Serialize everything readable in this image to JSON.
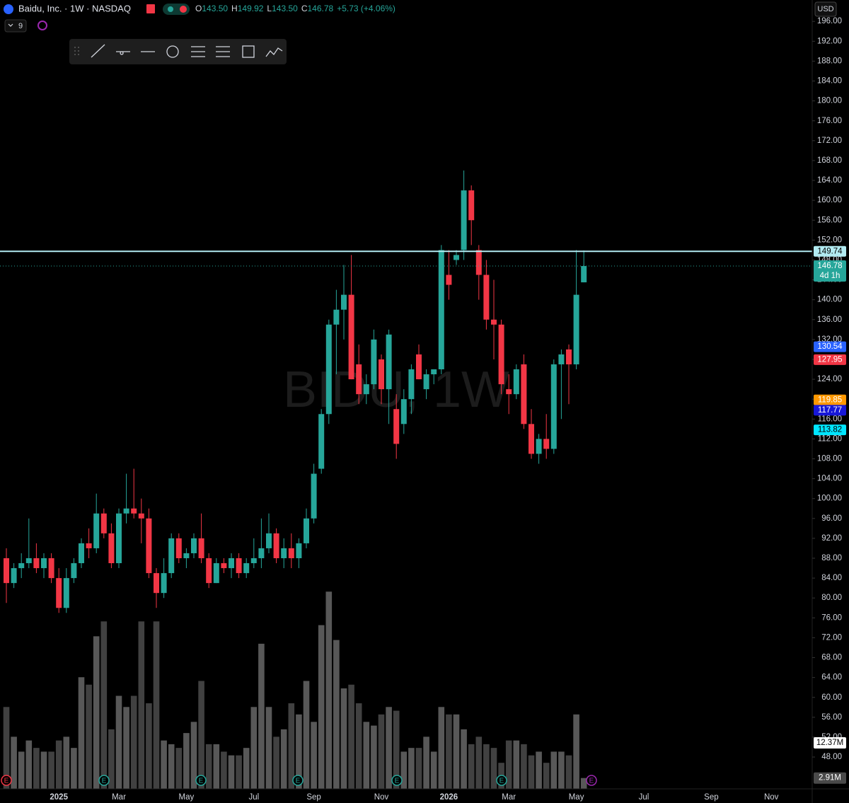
{
  "chart_data": {
    "type": "candlestick",
    "title": "Baidu, Inc. · 1W · NASDAQ",
    "watermark": "BIDU, 1W",
    "currency": "USD",
    "indicator_count": "9",
    "ohlc_header": [
      {
        "key": "O",
        "value": "143.50"
      },
      {
        "key": "H",
        "value": "149.92"
      },
      {
        "key": "L",
        "value": "143.50"
      },
      {
        "key": "C",
        "value": "146.78"
      }
    ],
    "change": "+5.73 (+4.06%)",
    "earnings_label": "E",
    "up_color": "#26a69a",
    "down_color": "#f23645",
    "categories": [
      null,
      null,
      null,
      null,
      null,
      null,
      null,
      "2025",
      null,
      null,
      null,
      null,
      null,
      null,
      null,
      "Mar",
      null,
      null,
      null,
      null,
      null,
      null,
      null,
      null,
      "May",
      null,
      null,
      null,
      null,
      null,
      null,
      null,
      null,
      "Jul",
      null,
      null,
      null,
      null,
      null,
      null,
      null,
      "Sep",
      null,
      null,
      null,
      null,
      null,
      null,
      null,
      null,
      "Nov",
      null,
      null,
      null,
      null,
      null,
      null,
      null,
      null,
      "2026",
      null,
      null,
      null,
      null,
      null,
      null,
      null,
      "Mar",
      null,
      null,
      null,
      null,
      null,
      null,
      null,
      null,
      "May",
      null,
      null,
      null,
      null,
      null,
      null,
      null,
      null,
      "Jul",
      null,
      null,
      null,
      null,
      null,
      null,
      null,
      null,
      "Sep",
      null,
      null,
      null,
      null,
      null,
      null,
      null,
      "Nov",
      null,
      null,
      null,
      null,
      null
    ],
    "open": [
      88,
      83,
      86,
      87,
      88,
      86,
      88,
      84,
      78,
      84,
      87,
      91,
      90,
      97,
      93,
      87,
      97,
      98,
      97,
      96,
      85,
      81,
      85,
      92,
      88,
      89,
      92,
      88,
      83,
      87,
      86,
      88,
      85,
      87,
      88,
      90,
      93,
      88,
      90,
      88,
      91,
      96,
      106,
      117,
      135,
      138,
      141,
      127,
      121,
      123,
      128,
      122,
      118,
      115,
      120,
      129,
      122,
      125,
      126,
      145,
      148,
      150,
      162,
      150,
      145,
      136,
      135,
      122,
      121,
      127,
      115,
      109,
      112,
      110,
      127,
      130,
      127,
      143.5,
      null,
      null,
      null,
      null,
      null,
      null,
      null,
      null,
      null,
      null,
      null,
      null,
      null,
      null,
      null,
      null,
      null,
      null,
      null,
      null,
      null,
      null,
      null,
      null,
      null,
      null,
      null,
      null,
      null,
      null
    ],
    "high": [
      90,
      87,
      89,
      96,
      91,
      89,
      89,
      86,
      86,
      88,
      92,
      94,
      101,
      98,
      95,
      98,
      105,
      106,
      100,
      98,
      86,
      88,
      93,
      93,
      90,
      93,
      97,
      89,
      88,
      88,
      89,
      89,
      88,
      92,
      96,
      97,
      94,
      92,
      93,
      92,
      98,
      107,
      118,
      136,
      142,
      147,
      149,
      131,
      125,
      134,
      129,
      134,
      121,
      122,
      127,
      131,
      126,
      126,
      151,
      150,
      150,
      166,
      163,
      151,
      148,
      144,
      136,
      125,
      127,
      129,
      118,
      113,
      117,
      128,
      130,
      131,
      150,
      149.92,
      null,
      null,
      null,
      null,
      null,
      null,
      null,
      null,
      null,
      null,
      null,
      null,
      null,
      null,
      null,
      null,
      null,
      null,
      null,
      null,
      null,
      null,
      null,
      null,
      null,
      null,
      null,
      null,
      null,
      null
    ],
    "low": [
      79,
      82,
      84,
      86,
      85,
      84,
      83,
      77,
      77,
      83,
      86,
      88,
      89,
      92,
      86,
      86,
      95,
      96,
      91,
      84,
      78,
      80,
      84,
      87,
      86,
      88,
      87,
      82,
      83,
      85,
      84,
      84,
      84,
      86,
      86,
      89,
      87,
      86,
      86,
      86,
      90,
      95,
      105,
      115,
      125,
      132,
      124,
      119,
      119,
      122,
      119,
      115,
      108,
      113,
      117,
      124,
      120,
      123,
      125,
      140,
      147,
      148,
      151,
      140,
      134,
      128,
      121,
      117,
      120,
      114,
      108,
      107,
      108,
      109,
      116,
      119,
      126,
      143.5,
      null,
      null,
      null,
      null,
      null,
      null,
      null,
      null,
      null,
      null,
      null,
      null,
      null,
      null,
      null,
      null,
      null,
      null,
      null,
      null,
      null,
      null,
      null,
      null,
      null,
      null,
      null,
      null,
      null,
      null
    ],
    "close": [
      83,
      86,
      87,
      88,
      86,
      88,
      84,
      78,
      84,
      87,
      91,
      90,
      97,
      93,
      87,
      97,
      98,
      97,
      96,
      85,
      81,
      85,
      92,
      88,
      89,
      92,
      88,
      83,
      87,
      86,
      88,
      85,
      87,
      88,
      90,
      93,
      88,
      90,
      88,
      91,
      96,
      105,
      117,
      135,
      138,
      141,
      124,
      121,
      123,
      132,
      122,
      133,
      111,
      120,
      126,
      124,
      125,
      126,
      150,
      143,
      149,
      162,
      156,
      145,
      136,
      135,
      123,
      121,
      126,
      115,
      109,
      112,
      110,
      127,
      129,
      127,
      141,
      146.78,
      null,
      null,
      null,
      null,
      null,
      null,
      null,
      null,
      null,
      null,
      null,
      null,
      null,
      null,
      null,
      null,
      null,
      null,
      null,
      null,
      null,
      null,
      null,
      null,
      null,
      null,
      null,
      null,
      null,
      null
    ],
    "volume": [
      22,
      14,
      10,
      13,
      11,
      10,
      10,
      13,
      14,
      11,
      30,
      28,
      41,
      45,
      16,
      25,
      22,
      25,
      45,
      23,
      45,
      13,
      12,
      11,
      15,
      18,
      29,
      12,
      12,
      10,
      9,
      9,
      11,
      22,
      39,
      22,
      14,
      16,
      23,
      20,
      29,
      18,
      44,
      53,
      40,
      27,
      28,
      23,
      18,
      17,
      20,
      22,
      21,
      10,
      11,
      11,
      14,
      10,
      22,
      20,
      20,
      16,
      12,
      14,
      12,
      11,
      7,
      13,
      13,
      12,
      9,
      10,
      7,
      10,
      10,
      9,
      20,
      2.91,
      null,
      null,
      null,
      null,
      null,
      null,
      null,
      null,
      null,
      null,
      null,
      null,
      null,
      null,
      null,
      null,
      null,
      null,
      null,
      null,
      null,
      null,
      null,
      null,
      null,
      null,
      null,
      null,
      null,
      null
    ],
    "volume_color": "#5d5d5d",
    "volume_lim": [
      0,
      212
    ],
    "volume_tags": [
      {
        "value": 12.37,
        "label": "12.37M",
        "color": "#ffffff",
        "text_color": "#000000"
      },
      {
        "value": 2.91,
        "label": "2.91M",
        "color": "#4a4a4a",
        "text_color": "#ffffff"
      }
    ],
    "ylim": [
      41.6,
      200.3
    ],
    "yticks": [
      {
        "value": 196,
        "label": "196.00"
      },
      {
        "value": 192,
        "label": "192.00"
      },
      {
        "value": 188,
        "label": "188.00"
      },
      {
        "value": 184,
        "label": "184.00"
      },
      {
        "value": 180,
        "label": "180.00"
      },
      {
        "value": 176,
        "label": "176.00"
      },
      {
        "value": 172,
        "label": "172.00"
      },
      {
        "value": 168,
        "label": "168.00"
      },
      {
        "value": 164,
        "label": "164.00"
      },
      {
        "value": 160,
        "label": "160.00"
      },
      {
        "value": 156,
        "label": "156.00"
      },
      {
        "value": 152,
        "label": "152.00"
      },
      {
        "value": 148,
        "label": "148.00"
      },
      {
        "value": 144,
        "label": "144.00"
      },
      {
        "value": 140,
        "label": "140.00"
      },
      {
        "value": 136,
        "label": "136.00"
      },
      {
        "value": 132,
        "label": "132.00"
      },
      {
        "value": 128,
        "label": "128.00"
      },
      {
        "value": 124,
        "label": "124.00"
      },
      {
        "value": 120,
        "label": "120.00"
      },
      {
        "value": 116,
        "label": "116.00"
      },
      {
        "value": 112,
        "label": "112.00"
      },
      {
        "value": 108,
        "label": "108.00"
      },
      {
        "value": 104,
        "label": "104.00"
      },
      {
        "value": 100,
        "label": "100.00"
      },
      {
        "value": 96,
        "label": "96.00"
      },
      {
        "value": 92,
        "label": "92.00"
      },
      {
        "value": 88,
        "label": "88.00"
      },
      {
        "value": 84,
        "label": "84.00"
      },
      {
        "value": 80,
        "label": "80.00"
      },
      {
        "value": 76,
        "label": "76.00"
      },
      {
        "value": 72,
        "label": "72.00"
      },
      {
        "value": 68,
        "label": "68.00"
      },
      {
        "value": 64,
        "label": "64.00"
      },
      {
        "value": 60,
        "label": "60.00"
      },
      {
        "value": 56,
        "label": "56.00"
      },
      {
        "value": 52,
        "label": "52.00"
      },
      {
        "value": 48,
        "label": "48.00"
      }
    ],
    "grid": false,
    "level_line": {
      "value": 149.74,
      "label": "149.74",
      "color": "#b2ebf2",
      "text_color": "#000000"
    },
    "price_tags": [
      {
        "value": 130.54,
        "label": "130.54",
        "color": "#2962ff",
        "text_color": "#ffffff"
      },
      {
        "value": 127.95,
        "label": "127.95",
        "color": "#f23645",
        "text_color": "#ffffff"
      },
      {
        "value": 119.85,
        "label": "119.85",
        "color": "#ff9800",
        "text_color": "#ffffff"
      },
      {
        "value": 117.77,
        "label": "117.77",
        "color": "#1717d8",
        "text_color": "#ffffff"
      },
      {
        "value": 113.82,
        "label": "113.82",
        "color": "#00e5ff",
        "text_color": "#000000"
      }
    ],
    "current_price": {
      "value": 146.78,
      "label": "146.78",
      "countdown": "4d 1h",
      "color": "#26a69a"
    }
  }
}
